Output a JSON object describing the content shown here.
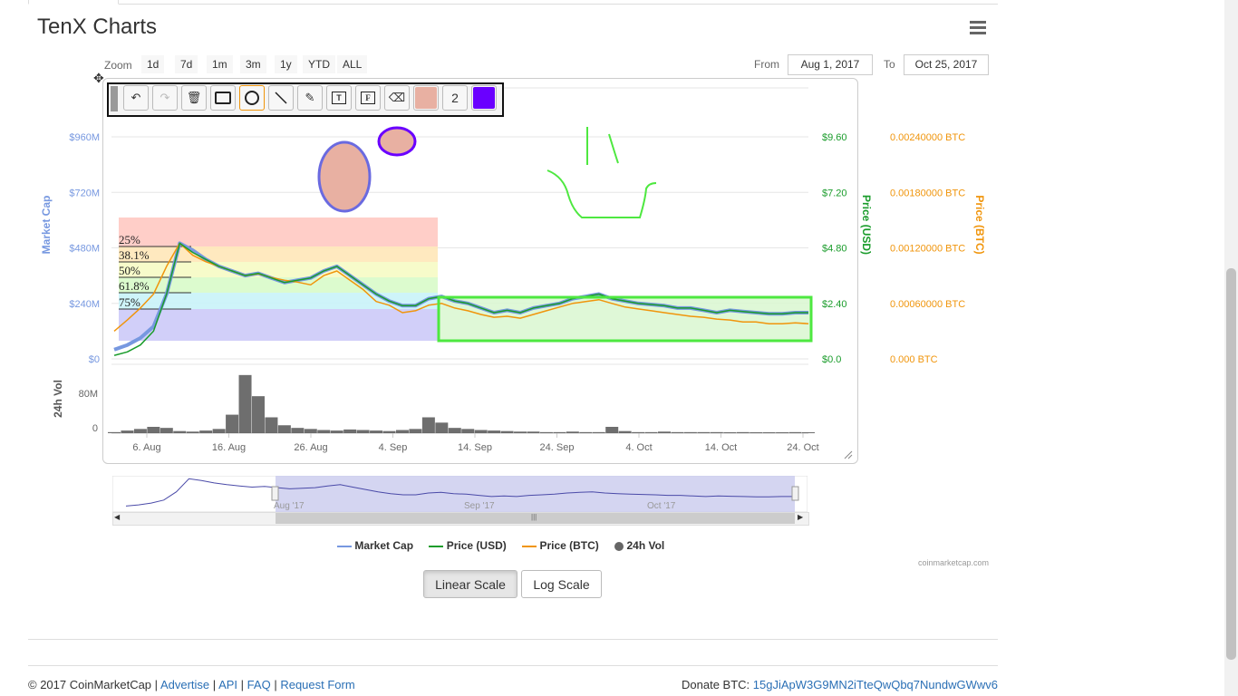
{
  "page": {
    "title": "TenX Charts"
  },
  "zoom": {
    "label": "Zoom",
    "buttons": [
      "1d",
      "7d",
      "1m",
      "3m",
      "1y",
      "YTD",
      "ALL"
    ]
  },
  "range": {
    "from_label": "From",
    "from_value": "Aug 1, 2017",
    "to_label": "To",
    "to_value": "Oct 25, 2017"
  },
  "toolbar": {
    "number_value": "2",
    "fill_color": "#e8b0a2",
    "stroke_color": "#6a00ff"
  },
  "chart_data": {
    "type": "line",
    "x_ticks": [
      "6. Aug",
      "16. Aug",
      "26. Aug",
      "4. Sep",
      "14. Sep",
      "24. Sep",
      "4. Oct",
      "14. Oct",
      "24. Oct"
    ],
    "axes": {
      "market_cap": {
        "label": "Market Cap",
        "ticks": [
          "$960M",
          "$720M",
          "$480M",
          "$240M",
          "$0"
        ],
        "ylim": [
          0,
          960
        ],
        "unit": "M USD"
      },
      "price_usd": {
        "label": "Price (USD)",
        "ticks": [
          "$9.60",
          "$7.20",
          "$4.80",
          "$2.40",
          "$0.0"
        ],
        "ylim": [
          0,
          9.6
        ]
      },
      "price_btc": {
        "label": "Price (BTC)",
        "ticks": [
          "0.00240000 BTC",
          "0.00180000 BTC",
          "0.00120000 BTC",
          "0.00060000 BTC",
          "0.000 BTC"
        ],
        "ylim": [
          0,
          0.0024
        ]
      },
      "volume": {
        "label": "24h Vol",
        "ticks": [
          "80M",
          "0"
        ],
        "ylim": [
          0,
          120
        ]
      }
    },
    "series": [
      {
        "name": "Market Cap",
        "color": "#7798e0",
        "values": [
          40,
          60,
          90,
          140,
          280,
          500,
          470,
          430,
          400,
          380,
          360,
          370,
          350,
          330,
          340,
          350,
          380,
          400,
          360,
          320,
          280,
          250,
          230,
          230,
          260,
          270,
          250,
          240,
          220,
          200,
          210,
          200,
          220,
          230,
          240,
          260,
          270,
          280,
          260,
          250,
          240,
          235,
          230,
          220,
          220,
          210,
          200,
          210,
          205,
          200,
          195,
          195,
          200,
          200
        ]
      },
      {
        "name": "Price (USD)",
        "color": "#1a9c2b",
        "values": [
          0.15,
          0.3,
          0.6,
          1.2,
          2.8,
          5.0,
          4.6,
          4.3,
          4.0,
          3.8,
          3.6,
          3.7,
          3.5,
          3.3,
          3.4,
          3.5,
          3.8,
          4.0,
          3.6,
          3.2,
          2.8,
          2.5,
          2.3,
          2.3,
          2.6,
          2.7,
          2.5,
          2.4,
          2.2,
          2.0,
          2.1,
          2.0,
          2.2,
          2.3,
          2.4,
          2.6,
          2.7,
          2.8,
          2.6,
          2.5,
          2.4,
          2.35,
          2.3,
          2.2,
          2.2,
          2.1,
          2.0,
          2.1,
          2.05,
          2.0,
          1.95,
          1.95,
          2.0,
          2.0
        ]
      },
      {
        "name": "Price (BTC)",
        "color": "#f0950c",
        "values": [
          0.0003,
          0.00042,
          0.00055,
          0.0007,
          0.001,
          0.00125,
          0.00112,
          0.00105,
          0.001,
          0.00095,
          0.0009,
          0.00092,
          0.00088,
          0.00085,
          0.00083,
          0.0008,
          0.0009,
          0.00095,
          0.00085,
          0.00075,
          0.00062,
          0.00058,
          0.0005,
          0.00052,
          0.00058,
          0.0006,
          0.00055,
          0.00052,
          0.00048,
          0.00045,
          0.00046,
          0.00044,
          0.00048,
          0.00052,
          0.00056,
          0.0006,
          0.00062,
          0.00064,
          0.0006,
          0.00056,
          0.00054,
          0.00052,
          0.0005,
          0.00048,
          0.00046,
          0.00045,
          0.00043,
          0.00042,
          0.0004,
          0.0004,
          0.00038,
          0.00038,
          0.00039,
          0.00038
        ]
      },
      {
        "name": "24h Vol",
        "color": "#555555",
        "values": [
          2,
          5,
          8,
          12,
          10,
          4,
          3,
          5,
          8,
          35,
          110,
          70,
          30,
          15,
          10,
          8,
          6,
          5,
          7,
          6,
          5,
          4,
          6,
          8,
          30,
          20,
          10,
          8,
          6,
          5,
          4,
          3,
          3,
          2,
          2,
          3,
          2,
          2,
          12,
          4,
          2,
          2,
          3,
          2,
          2,
          2,
          2,
          1,
          2,
          1,
          1,
          1,
          2,
          1
        ]
      }
    ],
    "fibonacci_levels": [
      "25%",
      "38.1%",
      "50%",
      "61.8%",
      "75%"
    ],
    "legend": [
      "Market Cap",
      "Price (USD)",
      "Price (BTC)",
      "24h Vol"
    ],
    "legend_position": "bottom",
    "navigator_labels": [
      "Aug '17",
      "Sep '17",
      "Oct '17"
    ],
    "grid": true
  },
  "scales": {
    "linear": "Linear Scale",
    "log": "Log Scale"
  },
  "credit": "coinmarketcap.com",
  "footer": {
    "copyright": "© 2017 CoinMarketCap |",
    "advertise": "Advertise",
    "sep1": "|",
    "api": "API",
    "sep2": "|",
    "faq": "FAQ",
    "sep3": "|",
    "request": "Request Form",
    "donate_label": "Donate BTC:",
    "donate_address": "15gJiApW3G9MN2iTteQwQbq7NundwGWwv6"
  }
}
